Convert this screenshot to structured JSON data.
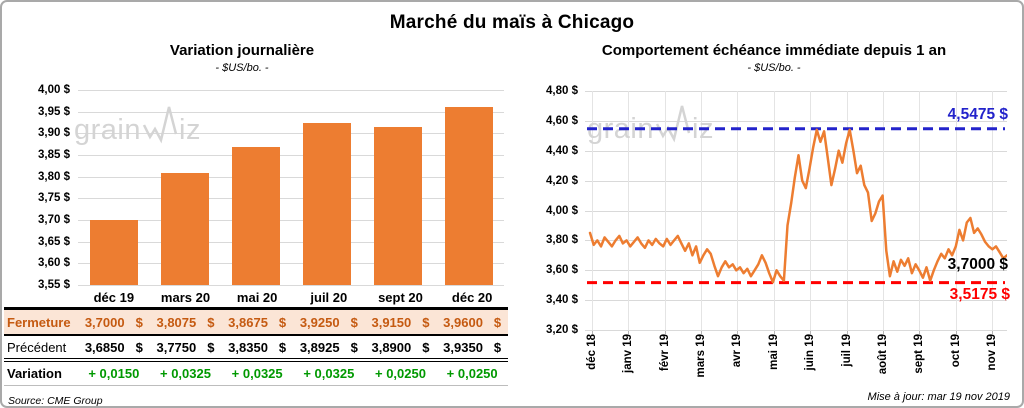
{
  "page": {
    "title": "Marché du maïs à Chicago",
    "source_note": "Source: CME Group",
    "update_note": "Mise à jour: mar 19 nov 2019",
    "watermark": {
      "before": "grain",
      "after": "iz"
    }
  },
  "colors": {
    "accent_orange": "#ED7D31",
    "fermeture_text": "#C55A11",
    "fermeture_bg": "#FBE5D6",
    "variation_green": "#009900",
    "resistance_blue": "#2323CB",
    "support_red": "#FF0000",
    "grid": "#D9D9D9",
    "vgrid": "#E4E4E4",
    "watermark_gray": "#D4D4D4"
  },
  "table": {
    "columns": [
      "déc 19",
      "mars 20",
      "mai 20",
      "juil 20",
      "sept 20",
      "déc 20"
    ],
    "rows": [
      {
        "label": "Fermeture",
        "unit": "$",
        "values": [
          "3,7000",
          "3,8075",
          "3,8675",
          "3,9250",
          "3,9150",
          "3,9600"
        ]
      },
      {
        "label": "Précédent",
        "unit": "$",
        "values": [
          "3,6850",
          "3,7750",
          "3,8350",
          "3,8925",
          "3,8900",
          "3,9350"
        ]
      },
      {
        "label": "Variation",
        "unit": "",
        "values": [
          "+ 0,0150",
          "+ 0,0325",
          "+ 0,0325",
          "+ 0,0325",
          "+ 0,0250",
          "+ 0,0250"
        ]
      }
    ]
  },
  "chart_data": [
    {
      "type": "bar",
      "title": "Variation journalière",
      "subtitle": "- $US/bo. -",
      "categories": [
        "déc 19",
        "mars 20",
        "mai 20",
        "juil 20",
        "sept 20",
        "déc 20"
      ],
      "values": [
        3.7,
        3.8075,
        3.8675,
        3.925,
        3.915,
        3.96
      ],
      "ylim": [
        3.55,
        4.0
      ],
      "ytick_step": 0.05,
      "grid": true,
      "legend": "none"
    },
    {
      "type": "line",
      "title": "Comportement échéance immédiate depuis 1 an",
      "subtitle": "- $US/bo. -",
      "x_tick_labels": [
        "déc 18",
        "janv 19",
        "févr 19",
        "mars 19",
        "avr 19",
        "mai 19",
        "juin 19",
        "juil 19",
        "août 19",
        "sept 19",
        "oct 19",
        "nov 19"
      ],
      "values": [
        3.85,
        3.77,
        3.8,
        3.76,
        3.82,
        3.79,
        3.76,
        3.8,
        3.83,
        3.78,
        3.8,
        3.76,
        3.79,
        3.82,
        3.78,
        3.75,
        3.8,
        3.77,
        3.81,
        3.78,
        3.76,
        3.81,
        3.77,
        3.8,
        3.83,
        3.78,
        3.73,
        3.78,
        3.7,
        3.76,
        3.65,
        3.7,
        3.74,
        3.71,
        3.63,
        3.56,
        3.62,
        3.66,
        3.62,
        3.64,
        3.6,
        3.62,
        3.58,
        3.61,
        3.56,
        3.6,
        3.64,
        3.7,
        3.65,
        3.58,
        3.52,
        3.6,
        3.56,
        3.53,
        3.9,
        4.05,
        4.22,
        4.37,
        4.2,
        4.15,
        4.28,
        4.42,
        4.54,
        4.46,
        4.53,
        4.35,
        4.17,
        4.28,
        4.4,
        4.32,
        4.45,
        4.54,
        4.4,
        4.25,
        4.3,
        4.17,
        4.12,
        3.93,
        3.98,
        4.06,
        4.1,
        3.73,
        3.56,
        3.66,
        3.59,
        3.67,
        3.63,
        3.68,
        3.58,
        3.64,
        3.6,
        3.55,
        3.62,
        3.53,
        3.6,
        3.66,
        3.71,
        3.68,
        3.74,
        3.7,
        3.76,
        3.87,
        3.8,
        3.92,
        3.95,
        3.85,
        3.88,
        3.84,
        3.79,
        3.76,
        3.74,
        3.76,
        3.72,
        3.68,
        3.7
      ],
      "ylim": [
        3.2,
        4.8
      ],
      "ytick_step": 0.2,
      "grid": true,
      "resistance": {
        "value": 4.5475,
        "label": "4,5475 $"
      },
      "support": {
        "value": 3.5175,
        "label": "3,5175 $"
      },
      "last": {
        "value": 3.7,
        "label": "3,7000 $"
      }
    }
  ]
}
